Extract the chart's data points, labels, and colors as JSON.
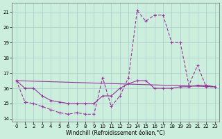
{
  "xlabel": "Windchill (Refroidissement éolien,°C)",
  "background_color": "#cceedd",
  "grid_color": "#aacccc",
  "line_color": "#993399",
  "xlim": [
    -0.5,
    23.5
  ],
  "ylim": [
    13.8,
    21.6
  ],
  "yticks": [
    14,
    15,
    16,
    17,
    18,
    19,
    20,
    21
  ],
  "xticks": [
    0,
    1,
    2,
    3,
    4,
    5,
    6,
    7,
    8,
    9,
    10,
    11,
    12,
    13,
    14,
    15,
    16,
    17,
    18,
    19,
    20,
    21,
    22,
    23
  ],
  "series1_x": [
    0,
    1,
    2,
    3,
    4,
    5,
    6,
    7,
    8,
    9,
    10,
    11,
    12,
    13,
    14,
    15,
    16,
    17,
    18,
    19,
    20,
    21,
    22,
    23
  ],
  "series1_y": [
    16.5,
    16.0,
    16.0,
    15.5,
    15.2,
    15.1,
    15.0,
    15.0,
    15.0,
    15.0,
    15.5,
    15.5,
    16.0,
    16.3,
    16.5,
    16.5,
    16.0,
    16.0,
    16.0,
    16.1,
    16.1,
    16.2,
    16.2,
    16.1
  ],
  "series2_x": [
    0,
    1,
    2,
    3,
    4,
    5,
    6,
    7,
    8,
    9,
    10,
    11,
    12,
    13,
    14,
    15,
    16,
    17,
    18,
    19,
    20,
    21,
    22,
    23
  ],
  "series2_y": [
    16.5,
    15.1,
    15.0,
    14.8,
    14.6,
    14.4,
    14.3,
    14.4,
    14.3,
    14.3,
    16.7,
    14.8,
    15.5,
    16.7,
    21.1,
    20.4,
    20.8,
    20.8,
    19.0,
    19.0,
    16.2,
    17.5,
    16.1,
    16.1
  ],
  "series3_x": [
    0,
    23
  ],
  "series3_y": [
    16.5,
    16.1
  ]
}
